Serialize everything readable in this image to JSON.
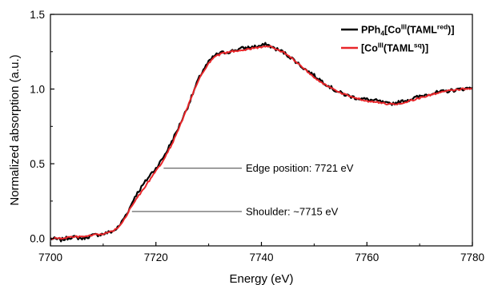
{
  "chart_data": {
    "type": "line",
    "title": "",
    "xlabel": "Energy (eV)",
    "ylabel": "Normalized absorption (a.u.)",
    "xlim": [
      7700,
      7780
    ],
    "ylim": [
      -0.05,
      1.5
    ],
    "xticks": [
      7700,
      7720,
      7740,
      7760,
      7780
    ],
    "yticks": [
      0.0,
      0.5,
      1.0,
      1.5
    ],
    "xtick_labels": [
      "7700",
      "7720",
      "7740",
      "7760",
      "7780"
    ],
    "ytick_labels": [
      "0.0",
      "0.5",
      "1.0",
      "1.5"
    ],
    "grid": false,
    "legend_position": "top-right",
    "series": [
      {
        "name_parts": [
          {
            "text": "PPh",
            "pos": "normal"
          },
          {
            "text": "4",
            "pos": "sub"
          },
          {
            "text": "[Co",
            "pos": "normal"
          },
          {
            "text": "III",
            "pos": "super"
          },
          {
            "text": "(TAML",
            "pos": "normal"
          },
          {
            "text": "red",
            "pos": "super"
          },
          {
            "text": ")]",
            "pos": "normal"
          }
        ],
        "color": "#000000",
        "x": [
          7700,
          7702,
          7704,
          7706,
          7708,
          7710,
          7712,
          7713,
          7714,
          7715,
          7716,
          7717,
          7718,
          7719,
          7720,
          7721,
          7722,
          7723,
          7724,
          7725,
          7726,
          7727,
          7728,
          7729,
          7730,
          7731,
          7732,
          7734,
          7736,
          7738,
          7740,
          7741,
          7742,
          7744,
          7746,
          7748,
          7750,
          7752,
          7754,
          7756,
          7758,
          7760,
          7762,
          7764,
          7766,
          7768,
          7770,
          7772,
          7774,
          7776,
          7778,
          7780
        ],
        "values": [
          0.0,
          -0.01,
          0.01,
          0.0,
          0.02,
          0.03,
          0.05,
          0.08,
          0.14,
          0.2,
          0.28,
          0.33,
          0.38,
          0.43,
          0.47,
          0.52,
          0.58,
          0.65,
          0.72,
          0.8,
          0.88,
          0.97,
          1.06,
          1.13,
          1.18,
          1.22,
          1.24,
          1.25,
          1.27,
          1.28,
          1.29,
          1.3,
          1.28,
          1.25,
          1.2,
          1.14,
          1.09,
          1.04,
          0.99,
          0.96,
          0.94,
          0.93,
          0.92,
          0.9,
          0.91,
          0.93,
          0.95,
          0.97,
          0.98,
          0.99,
          1.0,
          1.01
        ]
      },
      {
        "name_parts": [
          {
            "text": "[Co",
            "pos": "normal"
          },
          {
            "text": "III",
            "pos": "super"
          },
          {
            "text": "(TAML",
            "pos": "normal"
          },
          {
            "text": "sq",
            "pos": "super"
          },
          {
            "text": ")]",
            "pos": "normal"
          }
        ],
        "color": "#e8262a",
        "x": [
          7700,
          7702,
          7704,
          7706,
          7708,
          7710,
          7712,
          7713,
          7714,
          7715,
          7716,
          7717,
          7718,
          7719,
          7720,
          7721,
          7722,
          7723,
          7724,
          7725,
          7726,
          7727,
          7728,
          7729,
          7730,
          7731,
          7732,
          7734,
          7736,
          7738,
          7740,
          7741,
          7742,
          7744,
          7746,
          7748,
          7750,
          7752,
          7754,
          7756,
          7758,
          7760,
          7762,
          7764,
          7766,
          7768,
          7770,
          7772,
          7774,
          7776,
          7778,
          7780
        ],
        "values": [
          0.0,
          0.0,
          0.01,
          0.01,
          0.02,
          0.03,
          0.05,
          0.08,
          0.13,
          0.19,
          0.25,
          0.3,
          0.35,
          0.4,
          0.45,
          0.5,
          0.56,
          0.63,
          0.71,
          0.79,
          0.88,
          0.97,
          1.05,
          1.12,
          1.17,
          1.21,
          1.23,
          1.25,
          1.26,
          1.27,
          1.28,
          1.29,
          1.28,
          1.25,
          1.2,
          1.14,
          1.08,
          1.03,
          0.99,
          0.96,
          0.94,
          0.92,
          0.91,
          0.9,
          0.9,
          0.92,
          0.94,
          0.96,
          0.98,
          0.99,
          1.0,
          1.0
        ]
      }
    ],
    "annotations": [
      {
        "text": "Edge position: 7721 eV",
        "x": 7721,
        "y": 0.47
      },
      {
        "text": "Shoulder: ~7715 eV",
        "x": 7715,
        "y": 0.18
      }
    ]
  }
}
